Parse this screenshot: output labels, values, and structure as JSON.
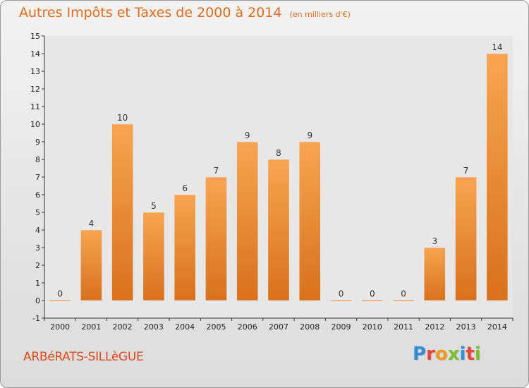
{
  "chart_data": {
    "type": "bar",
    "title": "Autres Impôts et Taxes de 2000 à 2014",
    "subtitle": "(en milliers d'€)",
    "categories": [
      "2000",
      "2001",
      "2002",
      "2003",
      "2004",
      "2005",
      "2006",
      "2007",
      "2008",
      "2009",
      "2010",
      "2011",
      "2012",
      "2013",
      "2014"
    ],
    "values": [
      0,
      4,
      10,
      5,
      6,
      7,
      9,
      8,
      9,
      0,
      0,
      0,
      3,
      7,
      14
    ],
    "data_labels": [
      "0",
      "4",
      "10",
      "5",
      "6",
      "7",
      "9",
      "8",
      "9",
      "0",
      "0",
      "0",
      "3",
      "7",
      "14"
    ],
    "y_ticks": [
      "-1",
      "0",
      "1",
      "2",
      "3",
      "4",
      "5",
      "6",
      "7",
      "8",
      "9",
      "10",
      "11",
      "12",
      "13",
      "14",
      "15"
    ],
    "ylim": [
      -1,
      15
    ],
    "grid": false,
    "bar_color": "#f0872d"
  },
  "commune": "ARBéRATS-SILLèGUE",
  "brand": {
    "letters": [
      {
        "ch": "P",
        "color": "#2f8fd8"
      },
      {
        "ch": "r",
        "color": "#e8463a"
      },
      {
        "ch": "o",
        "color": "#f29a1e"
      },
      {
        "ch": "x",
        "color": "#7cbf2e"
      },
      {
        "ch": "i",
        "color": "#2f8fd8"
      },
      {
        "ch": "t",
        "color": "#e8463a"
      },
      {
        "ch": "i",
        "color": "#7cbf2e"
      }
    ]
  }
}
